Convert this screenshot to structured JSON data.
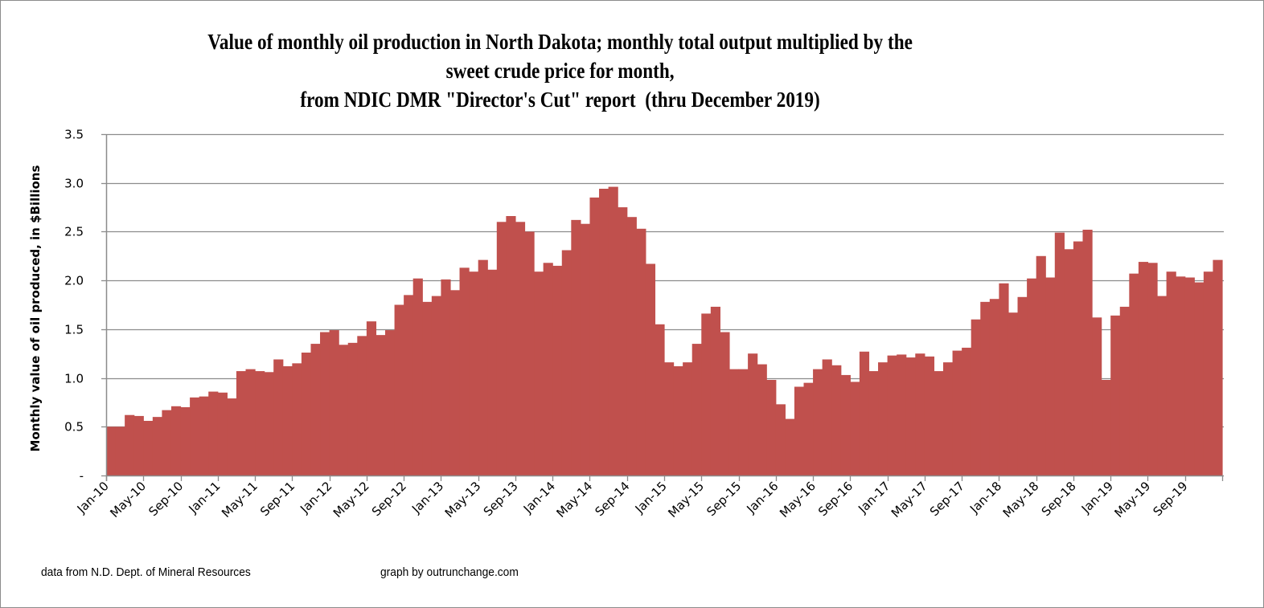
{
  "chart_data": {
    "type": "bar",
    "title": [
      "Value of monthly oil production in North Dakota; monthly total output multiplied by the",
      "sweet crude price for month,",
      "from NDIC DMR \"Director's Cut\" report  (thru December 2019)"
    ],
    "xlabel": "",
    "ylabel": "Monthly value of oil produced, in $Billions",
    "ylim": [
      0,
      3.5
    ],
    "yticks": [
      "-",
      "0.5",
      "1.0",
      "1.5",
      "2.0",
      "2.5",
      "3.0",
      "3.5"
    ],
    "ytick_values": [
      0,
      0.5,
      1.0,
      1.5,
      2.0,
      2.5,
      3.0,
      3.5
    ],
    "grid": true,
    "legend": "none",
    "bar_color": "#C0504D",
    "grid_color": "#8C8C8C",
    "x_tick_labels": [
      "Jan-10",
      "May-10",
      "Sep-10",
      "Jan-11",
      "May-11",
      "Sep-11",
      "Jan-12",
      "May-12",
      "Sep-12",
      "Jan-13",
      "May-13",
      "Sep-13",
      "Jan-14",
      "May-14",
      "Sep-14",
      "Jan-15",
      "May-15",
      "Sep-15",
      "Jan-16",
      "May-16",
      "Sep-16",
      "Jan-17",
      "May-17",
      "Sep-17",
      "Jan-18",
      "May-18",
      "Sep-18",
      "Jan-19",
      "May-19",
      "Sep-19"
    ],
    "x_start": "Jan-10",
    "x_end": "Dec-19",
    "series": [
      {
        "name": "Monthly value of oil produced ($Billions)",
        "values": [
          0.5,
          0.5,
          0.62,
          0.61,
          0.56,
          0.6,
          0.67,
          0.71,
          0.7,
          0.8,
          0.81,
          0.86,
          0.85,
          0.79,
          1.07,
          1.09,
          1.07,
          1.06,
          1.19,
          1.12,
          1.15,
          1.26,
          1.35,
          1.47,
          1.49,
          1.34,
          1.36,
          1.43,
          1.58,
          1.44,
          1.49,
          1.75,
          1.85,
          2.02,
          1.78,
          1.84,
          2.01,
          1.9,
          2.13,
          2.09,
          2.21,
          2.11,
          2.6,
          2.66,
          2.6,
          2.5,
          2.09,
          2.18,
          2.15,
          2.31,
          2.62,
          2.58,
          2.85,
          2.94,
          2.96,
          2.75,
          2.65,
          2.53,
          2.17,
          1.55,
          1.16,
          1.12,
          1.16,
          1.35,
          1.66,
          1.73,
          1.47,
          1.09,
          1.09,
          1.25,
          1.14,
          0.98,
          0.73,
          0.58,
          0.91,
          0.95,
          1.09,
          1.19,
          1.13,
          1.03,
          0.96,
          1.27,
          1.07,
          1.16,
          1.23,
          1.24,
          1.21,
          1.25,
          1.22,
          1.07,
          1.16,
          1.28,
          1.31,
          1.6,
          1.78,
          1.81,
          1.97,
          1.67,
          1.83,
          2.02,
          2.25,
          2.03,
          2.49,
          2.32,
          2.4,
          2.52,
          1.62,
          0.98,
          1.64,
          1.73,
          2.07,
          2.19,
          2.18,
          1.84,
          2.09,
          2.04,
          2.03,
          1.98,
          2.09,
          2.21
        ]
      }
    ]
  },
  "footer": {
    "source": "data from N.D. Dept. of Mineral Resources",
    "credit": "graph by outrunchange.com"
  }
}
